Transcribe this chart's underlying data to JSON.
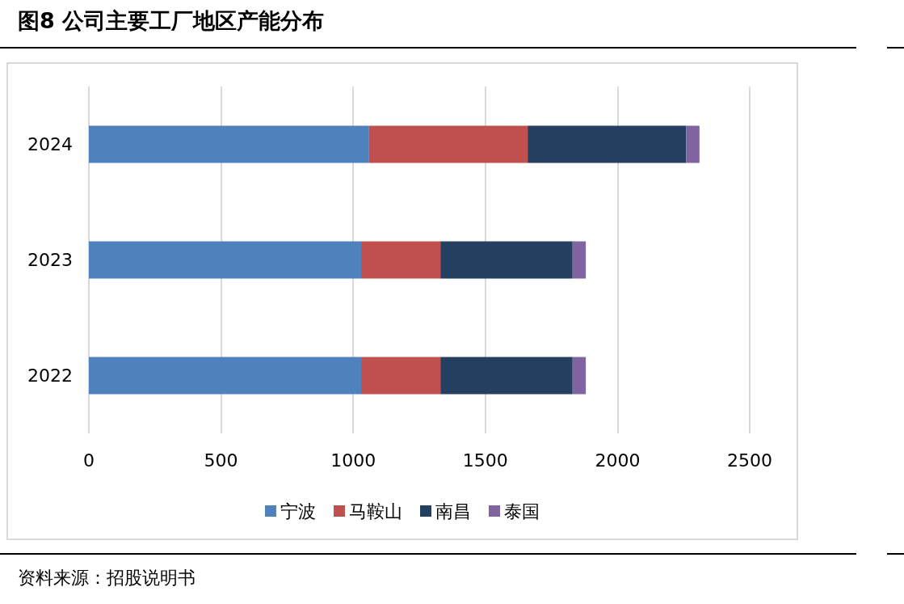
{
  "chart_data": {
    "type": "bar",
    "orientation": "horizontal",
    "stacked": true,
    "title": "图8  公司主要工厂地区产能分布",
    "categories": [
      "2024",
      "2023",
      "2022"
    ],
    "series": [
      {
        "name": "宁波",
        "color": "#4f81bd",
        "values": [
          1060,
          1030,
          1030
        ]
      },
      {
        "name": "马鞍山",
        "color": "#c0504d",
        "values": [
          600,
          300,
          300
        ]
      },
      {
        "name": "南昌",
        "color": "#243f60",
        "values": [
          600,
          500,
          500
        ]
      },
      {
        "name": "泰国",
        "color": "#8064a2",
        "values": [
          50,
          50,
          50
        ]
      }
    ],
    "xlim": [
      0,
      2500
    ],
    "xticks": [
      0,
      500,
      1000,
      1500,
      2000,
      2500
    ],
    "grid": "x",
    "legend": "bottom",
    "annotations": [
      "资料来源：招股说明书"
    ]
  }
}
